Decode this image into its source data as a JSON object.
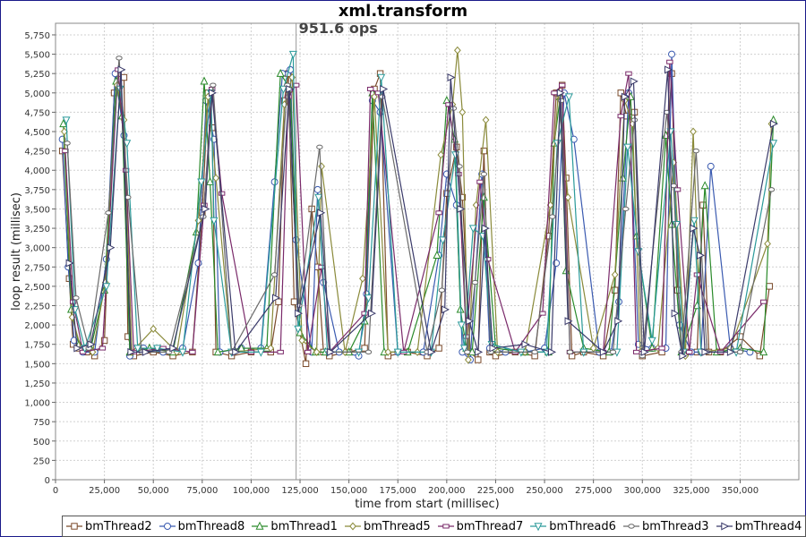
{
  "chart_data": {
    "type": "line",
    "title": "xml.transform",
    "annotation": "951.6 ops",
    "annotation_x": 123000,
    "xlabel": "time from start (millisec)",
    "ylabel": "loop result (millisec)",
    "xlim": [
      0,
      380000
    ],
    "ylim": [
      0,
      5900
    ],
    "x_ticks": [
      0,
      25000,
      50000,
      75000,
      100000,
      125000,
      150000,
      175000,
      200000,
      225000,
      250000,
      275000,
      300000,
      325000,
      350000
    ],
    "x_tick_labels": [
      "0",
      "25,000",
      "50,000",
      "75,000",
      "100,000",
      "125,000",
      "150,000",
      "175,000",
      "200,000",
      "225,000",
      "250,000",
      "275,000",
      "300,000",
      "325,000",
      "350,000"
    ],
    "y_ticks": [
      0,
      250,
      500,
      750,
      1000,
      1250,
      1500,
      1750,
      2000,
      2250,
      2500,
      2750,
      3000,
      3250,
      3500,
      3750,
      4000,
      4250,
      4500,
      4750,
      5000,
      5250,
      5500,
      5750
    ],
    "y_tick_labels": [
      "0",
      "250",
      "500",
      "750",
      "1,000",
      "1,250",
      "1,500",
      "1,750",
      "2,000",
      "2,250",
      "2,500",
      "2,750",
      "3,000",
      "3,250",
      "3,500",
      "3,750",
      "4,000",
      "4,250",
      "4,500",
      "4,750",
      "5,000",
      "5,250",
      "5,500",
      "5,750"
    ],
    "grid": true,
    "legend_position": "bottom",
    "series": [
      {
        "name": "bmThread2",
        "color": "#7a4a2a",
        "marker": "square",
        "x": [
          3500,
          7000,
          9000,
          12000,
          16000,
          20000,
          25000,
          30000,
          32000,
          35000,
          37000,
          40000,
          50000,
          60000,
          70000,
          75000,
          78000,
          80000,
          82000,
          90000,
          100000,
          110000,
          114000,
          117000,
          119000,
          122000,
          128000,
          131000,
          134000,
          137000,
          140000,
          150000,
          158000,
          163000,
          166000,
          170000,
          180000,
          190000,
          196000,
          200000,
          205000,
          208000,
          212000,
          216000,
          219000,
          222000,
          225000,
          235000,
          245000,
          252000,
          256000,
          259000,
          261000,
          264000,
          270000,
          280000,
          286000,
          289000,
          292000,
          296000,
          300000,
          310000,
          313000,
          315000,
          318000,
          322000,
          328000,
          331000,
          334000,
          340000,
          350000,
          360000,
          365000
        ],
        "y": [
          4250,
          2600,
          1750,
          1700,
          1650,
          1600,
          1800,
          5000,
          5250,
          5200,
          1850,
          1600,
          1650,
          1600,
          1650,
          3450,
          5000,
          4550,
          1650,
          1600,
          1650,
          1650,
          2300,
          4900,
          5250,
          2300,
          1500,
          3500,
          2750,
          1650,
          1600,
          1650,
          1700,
          5050,
          5250,
          1600,
          1650,
          1600,
          1700,
          3700,
          4300,
          3650,
          1650,
          1550,
          4250,
          1650,
          1600,
          1650,
          1600,
          3150,
          5000,
          5100,
          3900,
          1600,
          1650,
          1600,
          2450,
          5000,
          4700,
          4750,
          1600,
          1650,
          4450,
          5250,
          2450,
          1650,
          1650,
          3550,
          1650,
          1650,
          1850,
          1600,
          2500
        ]
      },
      {
        "name": "bmThread8",
        "color": "#3a5ab0",
        "marker": "circle",
        "x": [
          3500,
          6500,
          9500,
          14000,
          20000,
          26000,
          30500,
          35000,
          38000,
          45000,
          55000,
          65000,
          73000,
          77000,
          81000,
          84000,
          95000,
          105000,
          112000,
          116000,
          120000,
          123000,
          131000,
          134000,
          137000,
          145000,
          155000,
          159000,
          162000,
          166000,
          175000,
          188000,
          196000,
          200000,
          205000,
          208000,
          212000,
          218000,
          222000,
          230000,
          240000,
          250000,
          256000,
          260000,
          265000,
          278000,
          284000,
          288000,
          293000,
          298000,
          305000,
          312000,
          315000,
          319000,
          325000,
          330000,
          335000,
          345000,
          355000
        ],
        "y": [
          4400,
          2750,
          1800,
          1650,
          1650,
          2850,
          5250,
          4450,
          1600,
          1700,
          1650,
          1700,
          2800,
          4900,
          4400,
          1650,
          1700,
          1700,
          3850,
          5250,
          5300,
          3100,
          1650,
          3750,
          2550,
          1650,
          1600,
          2400,
          4900,
          4750,
          1650,
          1650,
          2900,
          3950,
          3550,
          1650,
          1550,
          3950,
          1700,
          1650,
          1650,
          1700,
          2800,
          5000,
          4400,
          1650,
          1650,
          2300,
          5000,
          1750,
          1700,
          1700,
          5500,
          2000,
          1650,
          1650,
          4050,
          1700,
          1650
        ]
      },
      {
        "name": "bmThread1",
        "color": "#2a8a2a",
        "marker": "triangle",
        "x": [
          4000,
          8000,
          12000,
          18000,
          25000,
          31000,
          34000,
          38000,
          48000,
          60000,
          72000,
          76000,
          79000,
          83000,
          95000,
          108000,
          115000,
          120000,
          125000,
          133000,
          138000,
          150000,
          158000,
          162000,
          168000,
          180000,
          195000,
          200000,
          204000,
          207000,
          210000,
          213000,
          219000,
          225000,
          240000,
          252000,
          255000,
          258000,
          261000,
          270000,
          283000,
          290000,
          294000,
          297000,
          305000,
          312000,
          315000,
          320000,
          328000,
          332000,
          338000,
          350000,
          362000,
          367000
        ],
        "y": [
          4600,
          2200,
          1750,
          1700,
          2450,
          5150,
          4700,
          1650,
          1700,
          1650,
          3200,
          5150,
          3850,
          1650,
          1700,
          1700,
          5250,
          5050,
          1900,
          1650,
          1650,
          1650,
          2050,
          5000,
          1650,
          1650,
          2900,
          4900,
          4400,
          2200,
          1700,
          1650,
          3650,
          1700,
          1650,
          1650,
          4350,
          4950,
          2700,
          1700,
          1650,
          3900,
          4950,
          3150,
          1700,
          4450,
          3300,
          1650,
          2250,
          3800,
          1650,
          1700,
          1650,
          4650
        ]
      },
      {
        "name": "bmThread5",
        "color": "#8a8a3a",
        "marker": "diamond",
        "x": [
          4500,
          8500,
          13000,
          19000,
          25500,
          31500,
          35000,
          39000,
          50000,
          62000,
          73000,
          78000,
          82000,
          90000,
          110000,
          117000,
          121000,
          126000,
          133500,
          136000,
          148000,
          157000,
          163000,
          170000,
          185000,
          197000,
          203000,
          205500,
          208000,
          211000,
          215000,
          220000,
          226000,
          240000,
          253000,
          257000,
          262000,
          275000,
          286000,
          291000,
          295000,
          299000,
          308000,
          316000,
          322000,
          326000,
          330000,
          345000,
          364000,
          366000
        ],
        "y": [
          4500,
          2100,
          1700,
          1650,
          2550,
          5100,
          4650,
          1650,
          1950,
          1650,
          3350,
          4950,
          3900,
          1650,
          1700,
          4850,
          5200,
          1800,
          1650,
          4050,
          1650,
          2600,
          4950,
          1650,
          1650,
          4200,
          4850,
          5550,
          4750,
          1550,
          3550,
          4650,
          1650,
          1650,
          3550,
          5000,
          3650,
          1700,
          2650,
          4900,
          4600,
          1650,
          1700,
          4100,
          1600,
          4500,
          1650,
          1700,
          3050,
          4600
        ]
      },
      {
        "name": "bmThread7",
        "color": "#7a2a6a",
        "marker": "hbar",
        "x": [
          5000,
          9000,
          14000,
          24000,
          32000,
          36000,
          40000,
          55000,
          70000,
          76000,
          80000,
          85000,
          100000,
          115000,
          119000,
          123000,
          129000,
          136000,
          140000,
          158000,
          161000,
          165000,
          178000,
          196000,
          201000,
          206000,
          210000,
          217000,
          221000,
          235000,
          249000,
          255000,
          259000,
          263000,
          280000,
          289000,
          293000,
          297000,
          310000,
          314000,
          318000,
          324000,
          328000,
          340000,
          362000
        ],
        "y": [
          4250,
          2300,
          1650,
          1700,
          5300,
          4000,
          1650,
          1700,
          1650,
          3550,
          5050,
          3700,
          1650,
          1650,
          4950,
          5100,
          1650,
          2750,
          1650,
          2150,
          5050,
          5000,
          1650,
          3450,
          4850,
          3950,
          1850,
          3850,
          2850,
          1650,
          2150,
          5000,
          5100,
          1650,
          1650,
          4700,
          5250,
          1650,
          1700,
          5400,
          3750,
          1650,
          2650,
          1650,
          2300
        ]
      },
      {
        "name": "bmThread6",
        "color": "#2a9a9a",
        "marker": "invtriangle",
        "x": [
          5500,
          10000,
          15000,
          26000,
          33000,
          36500,
          42000,
          52000,
          65000,
          74500,
          79500,
          81000,
          90000,
          105000,
          116500,
          121500,
          124000,
          134500,
          139000,
          155000,
          160000,
          166500,
          175000,
          192000,
          198000,
          204500,
          207500,
          209000,
          213500,
          218500,
          223000,
          238000,
          251000,
          256500,
          262500,
          270000,
          287000,
          292500,
          298000,
          305000,
          314500,
          317500,
          321000,
          326500,
          330000,
          348000,
          367000
        ],
        "y": [
          4650,
          2200,
          1700,
          2500,
          5050,
          4350,
          1700,
          1700,
          1650,
          3850,
          5000,
          3350,
          1650,
          1650,
          5050,
          5500,
          1950,
          3650,
          1650,
          1650,
          2350,
          5200,
          1650,
          1650,
          3100,
          4200,
          2000,
          1700,
          3250,
          3150,
          1750,
          1650,
          1650,
          4350,
          4950,
          1650,
          1650,
          4300,
          2950,
          1800,
          4500,
          3300,
          1650,
          3350,
          1650,
          1650,
          4350
        ]
      },
      {
        "name": "bmThread3",
        "color": "#6a6a6a",
        "marker": "smallcircle",
        "x": [
          6000,
          10500,
          17000,
          27000,
          32500,
          37000,
          44000,
          58000,
          75500,
          80500,
          90000,
          112000,
          118500,
          124500,
          135000,
          140000,
          160000,
          167000,
          190000,
          197500,
          203500,
          206500,
          210500,
          214500,
          219000,
          222500,
          245000,
          254000,
          258500,
          263000,
          285000,
          291500,
          296000,
          300000,
          312500,
          316000,
          320000,
          327500,
          333000,
          350000,
          366000
        ],
        "y": [
          4350,
          2350,
          1700,
          3450,
          5450,
          3650,
          1650,
          1650,
          3400,
          5100,
          1650,
          2650,
          5100,
          2250,
          4300,
          1650,
          1650,
          4950,
          1650,
          2450,
          4800,
          4050,
          1650,
          2550,
          3950,
          1650,
          1650,
          3400,
          4900,
          1650,
          1650,
          3500,
          4650,
          1600,
          4750,
          3800,
          1650,
          4250,
          1650,
          1650,
          3750
        ]
      },
      {
        "name": "bmThread4",
        "color": "#3a3a6a",
        "marker": "righttriangle",
        "x": [
          7000,
          11000,
          18000,
          28000,
          33500,
          38500,
          46000,
          60000,
          76500,
          80000,
          92000,
          112500,
          119500,
          124000,
          135500,
          140500,
          161500,
          167500,
          192000,
          199000,
          202000,
          207000,
          211500,
          216000,
          219500,
          223500,
          240000,
          253500,
          258000,
          262000,
          280000,
          287500,
          291000,
          295500,
          301000,
          313000,
          316500,
          320500,
          326000,
          329500,
          332000,
          345000,
          367000
        ],
        "y": [
          2800,
          1700,
          1750,
          3000,
          5300,
          1650,
          1650,
          1700,
          3500,
          5000,
          1650,
          2350,
          5050,
          2150,
          3450,
          1650,
          2150,
          5050,
          1650,
          2200,
          5200,
          3500,
          2050,
          1650,
          3250,
          1700,
          1750,
          1650,
          5000,
          2050,
          1650,
          2050,
          4950,
          5150,
          1650,
          5300,
          2150,
          1600,
          3250,
          2900,
          1650,
          1650,
          4600
        ]
      }
    ]
  }
}
